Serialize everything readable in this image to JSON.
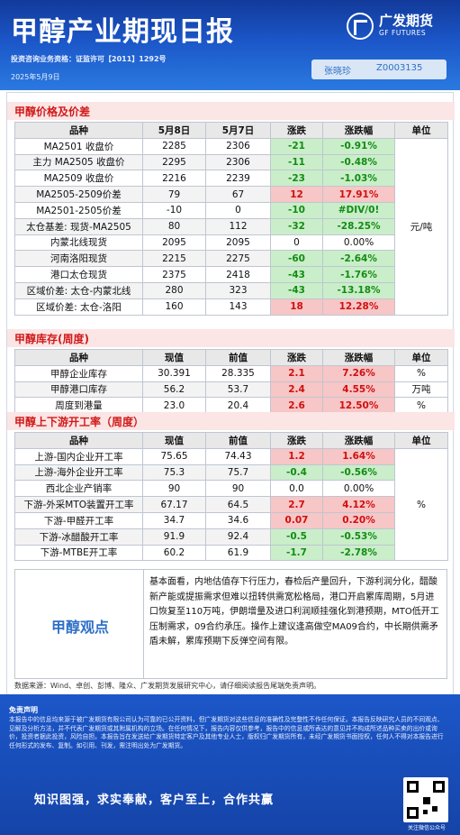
{
  "header": {
    "title": "甲醇产业期现日报",
    "logo_cn": "广发期货",
    "logo_en": "GF FUTURES",
    "license": "投资咨询业务资格：证监许可【2011】1292号",
    "date": "2025年5月9日",
    "analyst_name": "张晓珍",
    "analyst_id": "Z0003135"
  },
  "colors": {
    "header_blue": "#1b56c8",
    "up_red": "#d10f0f",
    "down_green": "#138c13",
    "section_red": "#d11a1a"
  },
  "price": {
    "section_title": "甲醇价格及价差",
    "headers": [
      "品种",
      "5月8日",
      "5月7日",
      "涨跌",
      "涨跌幅",
      "单位"
    ],
    "unit": "元/吨",
    "rows": [
      {
        "name": "MA2501 收盘价",
        "v1": "2285",
        "v2": "2306",
        "chg": "-21",
        "pct": "-0.91%"
      },
      {
        "name": "主力 MA2505 收盘价",
        "v1": "2295",
        "v2": "2306",
        "chg": "-11",
        "pct": "-0.48%"
      },
      {
        "name": "MA2509 收盘价",
        "v1": "2216",
        "v2": "2239",
        "chg": "-23",
        "pct": "-1.03%"
      },
      {
        "name": "MA2505-2509价差",
        "v1": "79",
        "v2": "67",
        "chg": "12",
        "pct": "17.91%"
      },
      {
        "name": "MA2501-2505价差",
        "v1": "-10",
        "v2": "0",
        "chg": "-10",
        "pct": "#DIV/0!"
      },
      {
        "name": "太仓基差: 现货-MA2505",
        "v1": "80",
        "v2": "112",
        "chg": "-32",
        "pct": "-28.25%"
      },
      {
        "name": "内蒙北线现货",
        "v1": "2095",
        "v2": "2095",
        "chg": "0",
        "pct": "0.00%"
      },
      {
        "name": "河南洛阳现货",
        "v1": "2215",
        "v2": "2275",
        "chg": "-60",
        "pct": "-2.64%"
      },
      {
        "name": "港口太仓现货",
        "v1": "2375",
        "v2": "2418",
        "chg": "-43",
        "pct": "-1.76%"
      },
      {
        "name": "区域价差: 太仓-内蒙北线",
        "v1": "280",
        "v2": "323",
        "chg": "-43",
        "pct": "-13.18%"
      },
      {
        "name": "区域价差: 太仓-洛阳",
        "v1": "160",
        "v2": "143",
        "chg": "18",
        "pct": "12.28%"
      }
    ]
  },
  "inventory": {
    "section_title": "甲醇库存(周度)",
    "headers": [
      "品种",
      "现值",
      "前值",
      "涨跌",
      "涨跌幅",
      "单位"
    ],
    "rows": [
      {
        "name": "甲醇企业库存",
        "v1": "30.391",
        "v2": "28.335",
        "chg": "2.1",
        "pct": "7.26%",
        "unit": "%"
      },
      {
        "name": "甲醇港口库存",
        "v1": "56.2",
        "v2": "53.7",
        "chg": "2.4",
        "pct": "4.55%",
        "unit": "万吨"
      },
      {
        "name": "周度到港量",
        "v1": "23.0",
        "v2": "20.4",
        "chg": "2.6",
        "pct": "12.50%",
        "unit": "%"
      }
    ]
  },
  "operating": {
    "section_title": "甲醇上下游开工率（周度）",
    "headers": [
      "品种",
      "现值",
      "前值",
      "涨跌",
      "涨跌幅",
      "单位"
    ],
    "unit": "%",
    "rows": [
      {
        "name": "上游-国内企业开工率",
        "v1": "75.65",
        "v2": "74.43",
        "chg": "1.2",
        "pct": "1.64%"
      },
      {
        "name": "上游-海外企业开工率",
        "v1": "75.3",
        "v2": "75.7",
        "chg": "-0.4",
        "pct": "-0.56%"
      },
      {
        "name": "西北企业产销率",
        "v1": "90",
        "v2": "90",
        "chg": "0.0",
        "pct": "0.00%"
      },
      {
        "name": "下游-外采MTO装置开工率",
        "v1": "67.17",
        "v2": "64.5",
        "chg": "2.7",
        "pct": "4.12%"
      },
      {
        "name": "下游-甲醛开工率",
        "v1": "34.7",
        "v2": "34.6",
        "chg": "0.07",
        "pct": "0.20%"
      },
      {
        "name": "下游-冰醋酸开工率",
        "v1": "91.9",
        "v2": "92.4",
        "chg": "-0.5",
        "pct": "-0.53%"
      },
      {
        "name": "下游-MTBE开工率",
        "v1": "60.2",
        "v2": "61.9",
        "chg": "-1.7",
        "pct": "-2.78%"
      }
    ]
  },
  "commentary": {
    "label": "甲醇观点",
    "text": "基本面看，内地估值存下行压力，春检后产量回升，下游利润分化，醋酸新产能或提振需求但难以扭转供需宽松格局，港口开启累库周期，5月进口恢复至110万吨，伊朗增量及进口利润顺挂强化到港预期，MTO低开工压制需求，09合约承压。操作上建议逢高做空MA09合约，中长期供需矛盾未解，累库预期下反弹空间有限。"
  },
  "source": "数据来源：Wind、卓创、彭博、隆众、广发期货发展研究中心，请仔细阅读报告尾端免责声明。",
  "disclaimer": {
    "title": "免责声明",
    "text": "本报告中的信息均来源于被广发期货有限公司认为可靠的已公开资料，但广发期货对这些信息的准确性及完整性不作任何保证。本报告反映研究人员的不同观点、见解及分析方法，并不代表广发期货或其附属机构的立场。在任何情况下，报告内容仅供参考，报告中的信息或所表达的意见并不构成所述品种买卖的出价或询价，投资者据此投资，风险自担。本报告旨在发送给广发期货特定客户及其他专业人士，版权归广发期货所有，未经广发期货书面授权，任何人不得对本报告进行任何形式的发布、复制。如引用、刊发，需注明出处为广发期货。",
    "slogan": "知识图强，求实奉献，客户至上，合作共赢",
    "qr_caption": "关注微信公众号"
  }
}
